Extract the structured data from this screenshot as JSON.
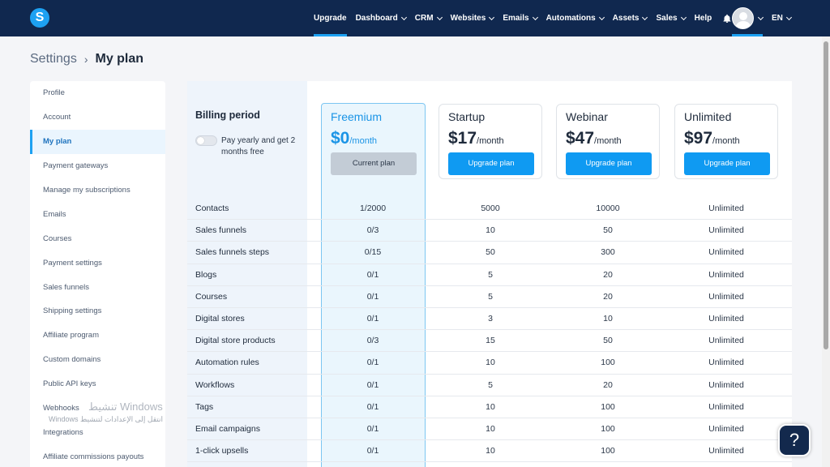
{
  "nav": {
    "items": [
      {
        "label": "Upgrade",
        "dropdown": false
      },
      {
        "label": "Dashboard",
        "dropdown": true
      },
      {
        "label": "CRM",
        "dropdown": true
      },
      {
        "label": "Websites",
        "dropdown": true
      },
      {
        "label": "Emails",
        "dropdown": true
      },
      {
        "label": "Automations",
        "dropdown": true
      },
      {
        "label": "Assets",
        "dropdown": true
      },
      {
        "label": "Sales",
        "dropdown": true
      },
      {
        "label": "Help",
        "dropdown": false
      }
    ],
    "language": "EN",
    "logo_letter": "S"
  },
  "breadcrumb": {
    "parent": "Settings",
    "separator": "›",
    "current": "My plan"
  },
  "sidebar": {
    "items": [
      {
        "label": "Profile"
      },
      {
        "label": "Account"
      },
      {
        "label": "My plan"
      },
      {
        "label": "Payment gateways"
      },
      {
        "label": "Manage my subscriptions"
      },
      {
        "label": "Emails"
      },
      {
        "label": "Courses"
      },
      {
        "label": "Payment settings"
      },
      {
        "label": "Sales funnels"
      },
      {
        "label": "Shipping settings"
      },
      {
        "label": "Affiliate program"
      },
      {
        "label": "Custom domains"
      },
      {
        "label": "Public API keys"
      },
      {
        "label": "Webhooks"
      },
      {
        "label": "Integrations"
      },
      {
        "label": "Affiliate commissions payouts"
      }
    ]
  },
  "billing": {
    "title": "Billing period",
    "toggle_label": "Pay yearly and get 2 months free"
  },
  "plans": {
    "freemium": {
      "name": "Freemium",
      "price": "$0",
      "per": "/month",
      "button": "Current plan"
    },
    "startup": {
      "name": "Startup",
      "price": "$17",
      "per": "/month",
      "button": "Upgrade plan"
    },
    "webinar": {
      "name": "Webinar",
      "price": "$47",
      "per": "/month",
      "button": "Upgrade plan"
    },
    "unlimited": {
      "name": "Unlimited",
      "price": "$97",
      "per": "/month",
      "button": "Upgrade plan"
    }
  },
  "features": [
    {
      "label": "Contacts",
      "values": [
        "1/2000",
        "5000",
        "10000",
        "Unlimited"
      ]
    },
    {
      "label": "Sales funnels",
      "values": [
        "0/3",
        "10",
        "50",
        "Unlimited"
      ]
    },
    {
      "label": "Sales funnels steps",
      "values": [
        "0/15",
        "50",
        "300",
        "Unlimited"
      ]
    },
    {
      "label": "Blogs",
      "values": [
        "0/1",
        "5",
        "20",
        "Unlimited"
      ]
    },
    {
      "label": "Courses",
      "values": [
        "0/1",
        "5",
        "20",
        "Unlimited"
      ]
    },
    {
      "label": "Digital stores",
      "values": [
        "0/1",
        "3",
        "10",
        "Unlimited"
      ]
    },
    {
      "label": "Digital store products",
      "values": [
        "0/3",
        "15",
        "50",
        "Unlimited"
      ]
    },
    {
      "label": "Automation rules",
      "values": [
        "0/1",
        "10",
        "100",
        "Unlimited"
      ]
    },
    {
      "label": "Workflows",
      "values": [
        "0/1",
        "5",
        "20",
        "Unlimited"
      ]
    },
    {
      "label": "Tags",
      "values": [
        "0/1",
        "10",
        "100",
        "Unlimited"
      ]
    },
    {
      "label": "Email campaigns",
      "values": [
        "0/1",
        "10",
        "100",
        "Unlimited"
      ]
    },
    {
      "label": "1-click upsells",
      "values": [
        "0/1",
        "10",
        "100",
        "Unlimited"
      ]
    }
  ],
  "watermark": {
    "line1": "تنشيط Windows",
    "line2": "انتقل إلى الإعدادات لتنشيط Windows"
  },
  "help_button": "?",
  "colors": {
    "nav_bg": "#10284f",
    "accent": "#1da1f2",
    "button": "#0f9af2"
  }
}
